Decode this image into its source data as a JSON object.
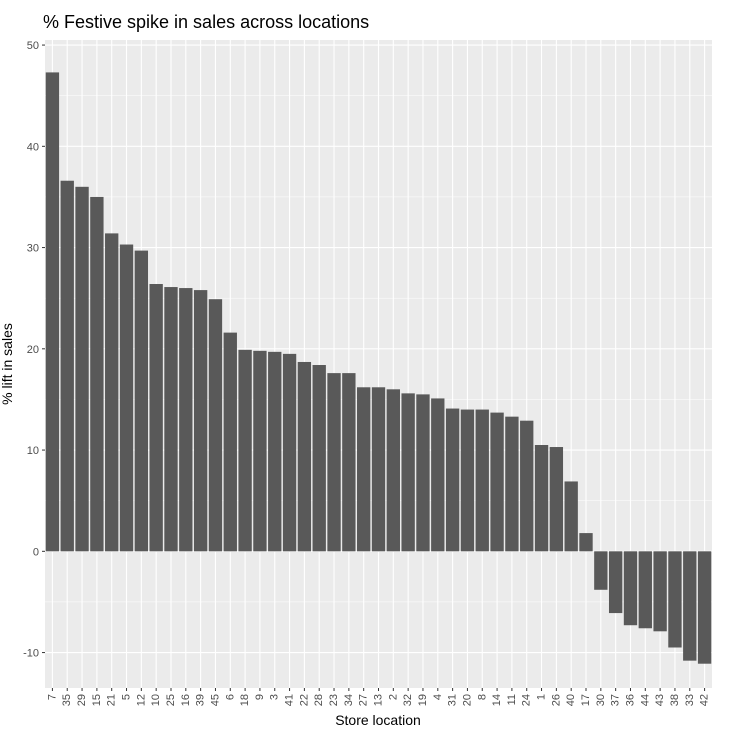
{
  "chart_data": {
    "type": "bar",
    "title": "% Festive spike in sales across locations",
    "xlabel": "Store location",
    "ylabel": "% lift in sales",
    "ylim": [
      -13.5,
      50.5
    ],
    "yticks": [
      50,
      40,
      30,
      20,
      10,
      0,
      -10
    ],
    "grid": true,
    "legend": "none",
    "categories": [
      "7",
      "35",
      "29",
      "15",
      "21",
      "5",
      "12",
      "10",
      "25",
      "16",
      "39",
      "45",
      "6",
      "18",
      "9",
      "3",
      "41",
      "22",
      "28",
      "23",
      "34",
      "27",
      "13",
      "2",
      "32",
      "19",
      "4",
      "31",
      "20",
      "8",
      "14",
      "11",
      "24",
      "1",
      "26",
      "40",
      "17",
      "30",
      "37",
      "36",
      "44",
      "43",
      "38",
      "33",
      "42"
    ],
    "values": [
      47.3,
      36.6,
      36.0,
      35.0,
      31.4,
      30.3,
      29.7,
      26.4,
      26.1,
      26.0,
      25.8,
      24.9,
      21.6,
      19.9,
      19.8,
      19.7,
      19.5,
      18.7,
      18.4,
      17.6,
      17.6,
      16.2,
      16.2,
      16.0,
      15.6,
      15.5,
      15.1,
      14.1,
      14.0,
      14.0,
      13.7,
      13.3,
      12.9,
      10.5,
      10.3,
      6.9,
      1.8,
      -3.8,
      -6.1,
      -7.3,
      -7.6,
      -7.9,
      -9.5,
      -10.8,
      -11.1
    ],
    "bar_color": "#595959",
    "panel_color": "#ebebeb",
    "grid_color": "#ffffff"
  }
}
